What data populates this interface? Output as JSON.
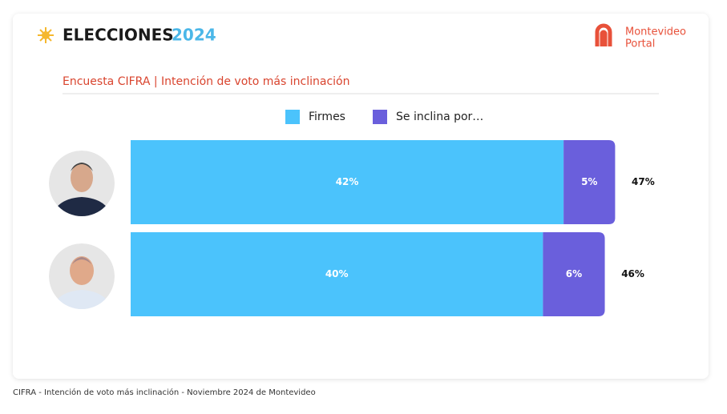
{
  "header": {
    "title": "ELECCIONES",
    "year": "2024",
    "brand": "Montevideo",
    "brand_sub": "Portal"
  },
  "chart_data": {
    "type": "stacked-bar",
    "orientation": "horizontal",
    "subtitle": "Encuesta CIFRA | Intención de voto más inclinación",
    "categories": [
      null,
      null
    ],
    "series": [
      {
        "name": "Firmes",
        "color": "#4bc3fc",
        "values": [
          42,
          40
        ],
        "value_labels": [
          "42%",
          "40%"
        ]
      },
      {
        "name": "Se inclina por…",
        "color": "#6a5fdc",
        "values": [
          5,
          6
        ],
        "value_labels": [
          "5%",
          "6%"
        ]
      }
    ],
    "totals": {
      "values": [
        47,
        46
      ],
      "value_labels": [
        "47%",
        "46%"
      ]
    }
  },
  "footer": "CIFRA - Intención de voto más inclinación - Noviembre 2024 de Montevideo"
}
